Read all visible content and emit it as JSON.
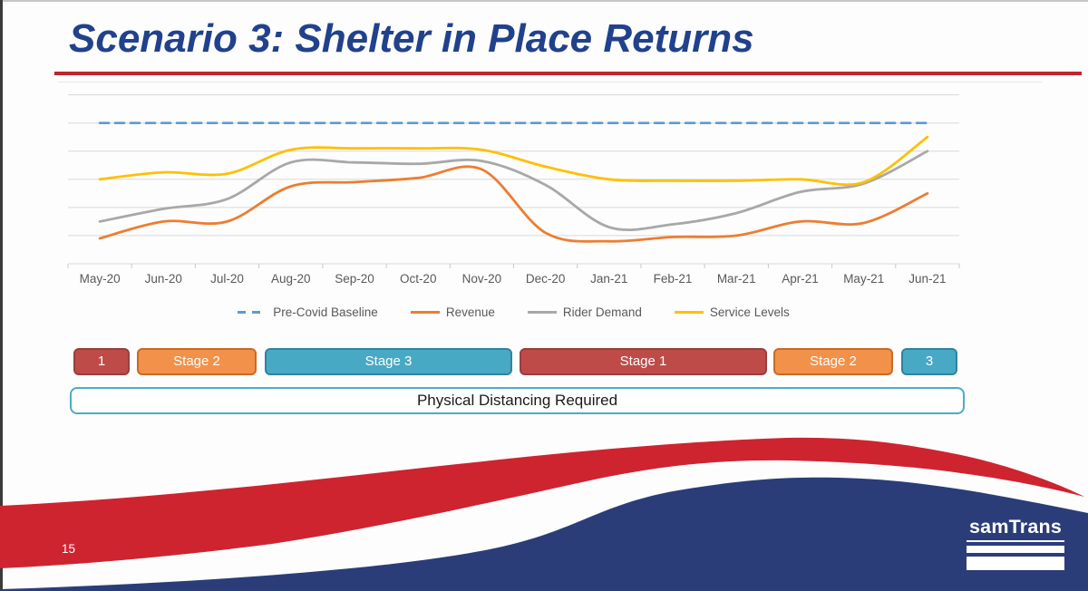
{
  "slide": {
    "title": "Scenario 3: Shelter in Place Returns",
    "page_number": "15",
    "logo_text": "samTrans"
  },
  "banner": {
    "label": "Physical Distancing Required"
  },
  "colors": {
    "title_text": "#21418D",
    "title_rule": "#C4232E",
    "swoosh_red": "#CE2430",
    "swoosh_navy": "#2B3D78",
    "banner_border": "#4BACC6",
    "gridline": "#D9D9D9",
    "axis_line": "#C9C9C9",
    "axis_text": "#595959",
    "stage_types": {
      "stage1": {
        "fill": "#BE4B48",
        "border": "#96403D"
      },
      "stage2": {
        "fill": "#F2914A",
        "border": "#C96A24"
      },
      "stage3": {
        "fill": "#48A9C5",
        "border": "#2F84A0"
      }
    }
  },
  "chart_data": {
    "type": "line",
    "title": "",
    "xlabel": "",
    "ylabel": "",
    "ylim": [
      0,
      125
    ],
    "y_axis_labels_visible": false,
    "gridlines": "horizontal every 20 units, 0 to 120",
    "legend_position": "bottom",
    "categories": [
      "May-20",
      "Jun-20",
      "Jul-20",
      "Aug-20",
      "Sep-20",
      "Oct-20",
      "Nov-20",
      "Dec-20",
      "Jan-21",
      "Feb-21",
      "Mar-21",
      "Apr-21",
      "May-21",
      "Jun-21"
    ],
    "series": [
      {
        "name": "Pre-Covid Baseline",
        "color": "#5B9BD5",
        "style": "dashed",
        "values": [
          100,
          100,
          100,
          100,
          100,
          100,
          100,
          100,
          100,
          100,
          100,
          100,
          100,
          100
        ]
      },
      {
        "name": "Revenue",
        "color": "#ED7D31",
        "style": "solid",
        "values": [
          18,
          30,
          30,
          55,
          58,
          61,
          67,
          22,
          16,
          19,
          20,
          30,
          29,
          50
        ]
      },
      {
        "name": "Rider Demand",
        "color": "#A8A8A8",
        "style": "solid",
        "values": [
          30,
          39,
          46,
          72,
          72,
          71,
          73,
          56,
          26,
          28,
          36,
          51,
          57,
          80
        ]
      },
      {
        "name": "Service Levels",
        "color": "#FFC001",
        "style": "solid",
        "values": [
          60,
          65,
          64,
          81,
          82,
          82,
          81,
          69,
          60,
          59,
          59,
          60,
          58,
          90
        ]
      }
    ]
  },
  "stages": [
    {
      "label": "1",
      "type": "stage1",
      "start_month": 0,
      "end_month": 0
    },
    {
      "label": "Stage 2",
      "type": "stage2",
      "start_month": 1,
      "end_month": 2
    },
    {
      "label": "Stage 3",
      "type": "stage3",
      "start_month": 3,
      "end_month": 6
    },
    {
      "label": "Stage 1",
      "type": "stage1",
      "start_month": 7,
      "end_month": 10
    },
    {
      "label": "Stage 2",
      "type": "stage2",
      "start_month": 11,
      "end_month": 12
    },
    {
      "label": "3",
      "type": "stage3",
      "start_month": 13,
      "end_month": 13
    }
  ]
}
